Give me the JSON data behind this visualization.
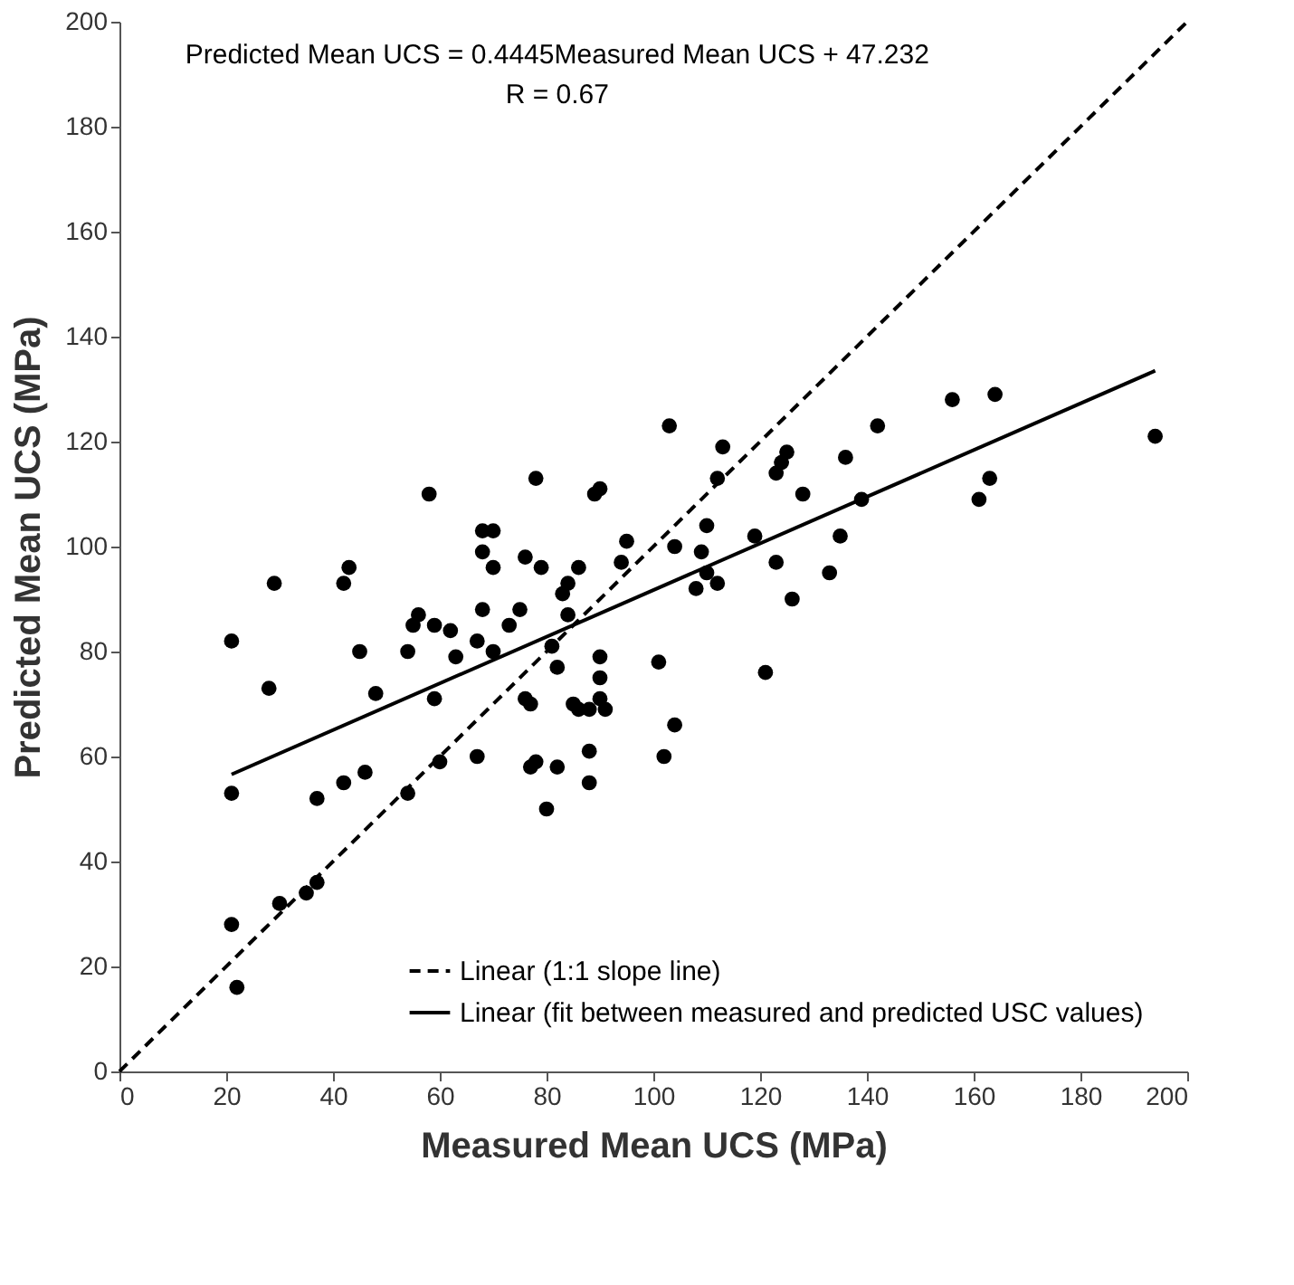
{
  "chart_data": {
    "type": "scatter",
    "xlabel": "Measured Mean UCS (MPa)",
    "ylabel": "Predicted Mean UCS (MPa)",
    "annotations": [
      "Predicted Mean UCS = 0.4445Measured Mean UCS + 47.232",
      "R = 0.67"
    ],
    "xlim": [
      0,
      200
    ],
    "ylim": [
      0,
      200
    ],
    "xticks": [
      0,
      20,
      40,
      60,
      80,
      100,
      120,
      140,
      160,
      180,
      200
    ],
    "yticks": [
      0,
      20,
      40,
      60,
      80,
      100,
      120,
      140,
      160,
      180,
      200
    ],
    "grid": false,
    "legend": "bottom right",
    "series": [
      {
        "marker": "circle",
        "color": "#000000",
        "x": [
          21,
          21,
          21,
          22,
          28,
          29,
          30,
          35,
          37,
          37,
          42,
          42,
          43,
          45,
          46,
          48,
          54,
          54,
          55,
          56,
          58,
          59,
          60,
          59,
          62,
          63,
          67,
          67,
          68,
          68,
          68,
          70,
          70,
          70,
          73,
          75,
          76,
          76,
          77,
          77,
          78,
          78,
          79,
          80,
          81,
          82,
          82,
          83,
          84,
          84,
          85,
          86,
          86,
          88,
          88,
          88,
          89,
          90,
          90,
          90,
          90,
          91,
          94,
          95,
          101,
          102,
          103,
          104,
          104,
          108,
          109,
          110,
          110,
          112,
          112,
          113,
          119,
          121,
          123,
          123,
          124,
          125,
          126,
          128,
          133,
          135,
          136,
          139,
          142,
          156,
          161,
          163,
          164,
          194
        ],
        "values": [
          53,
          82,
          28,
          16,
          73,
          93,
          32,
          34,
          36,
          52,
          55,
          93,
          96,
          80,
          57,
          72,
          53,
          80,
          85,
          87,
          110,
          71,
          59,
          85,
          84,
          79,
          60,
          82,
          99,
          103,
          88,
          80,
          103,
          96,
          85,
          88,
          98,
          71,
          58,
          70,
          59,
          113,
          96,
          50,
          81,
          77,
          58,
          91,
          93,
          87,
          70,
          96,
          69,
          69,
          55,
          61,
          110,
          111,
          79,
          75,
          71,
          69,
          97,
          101,
          78,
          60,
          123,
          66,
          100,
          92,
          99,
          104,
          95,
          93,
          113,
          119,
          102,
          76,
          97,
          114,
          116,
          118,
          90,
          110,
          95,
          102,
          117,
          109,
          123,
          128,
          109,
          113,
          129,
          121
        ]
      },
      {
        "type": "line",
        "name": "Linear (1:1 slope line)",
        "color": "#000000",
        "line_style": "dashed",
        "marker": "none",
        "x": [
          0,
          200
        ],
        "values": [
          0,
          200
        ]
      },
      {
        "type": "line",
        "name": "Linear (fit between measured and predicted USC values)",
        "color": "#000000",
        "line_style": "solid",
        "marker": "none",
        "x": [
          21,
          194
        ],
        "values": [
          56.6,
          133.5
        ]
      }
    ]
  }
}
